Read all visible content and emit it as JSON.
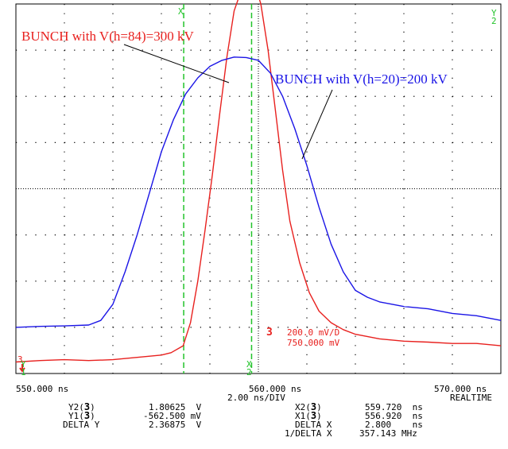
{
  "colors": {
    "red_trace": "#e8201e",
    "blue_trace": "#1a14e6",
    "cursor": "#22c32a",
    "grid": "#000000"
  },
  "chart_data": {
    "type": "line",
    "xlim": [
      550,
      570
    ],
    "ylim": [
      -4,
      4
    ],
    "x_unit": "ns",
    "grid": true,
    "xticks": [
      "550.000 ns",
      "560.000 ns",
      "570.000 ns"
    ],
    "timebase": "2.00 ns/DIV",
    "mode": "REALTIME",
    "series": [
      {
        "name": "BUNCH with V(h=84)=300 kV",
        "color": "#e8201e",
        "x": [
          550.0,
          551.0,
          552.0,
          553.0,
          554.0,
          555.0,
          556.0,
          556.4,
          556.9,
          557.2,
          557.5,
          557.8,
          558.1,
          558.4,
          558.7,
          559.0,
          559.3,
          559.6,
          559.9,
          560.1,
          560.4,
          560.7,
          561.0,
          561.3,
          561.7,
          562.1,
          562.5,
          563.0,
          563.5,
          564.0,
          565.0,
          566.0,
          567.0,
          568.0,
          569.0,
          570.0
        ],
        "y": [
          -3.75,
          -3.72,
          -3.7,
          -3.72,
          -3.7,
          -3.65,
          -3.6,
          -3.55,
          -3.4,
          -2.9,
          -2.0,
          -0.9,
          0.3,
          1.6,
          2.85,
          3.85,
          4.3,
          4.35,
          4.35,
          4.0,
          3.0,
          1.7,
          0.4,
          -0.7,
          -1.6,
          -2.25,
          -2.65,
          -2.9,
          -3.05,
          -3.15,
          -3.25,
          -3.3,
          -3.32,
          -3.35,
          -3.35,
          -3.4
        ]
      },
      {
        "name": "BUNCH with V(h=20)=200 kV",
        "color": "#1a14e6",
        "x": [
          550.0,
          551.0,
          552.0,
          553.0,
          553.5,
          554.0,
          554.5,
          555.0,
          555.5,
          556.0,
          556.5,
          557.0,
          557.5,
          558.0,
          558.5,
          559.0,
          559.5,
          560.0,
          560.5,
          561.0,
          561.5,
          562.0,
          562.5,
          563.0,
          563.5,
          564.0,
          564.5,
          565.0,
          566.0,
          567.0,
          568.0,
          569.0,
          570.0
        ],
        "y": [
          -3.0,
          -2.98,
          -2.97,
          -2.95,
          -2.85,
          -2.5,
          -1.8,
          -1.0,
          -0.1,
          0.8,
          1.5,
          2.05,
          2.4,
          2.65,
          2.78,
          2.85,
          2.84,
          2.78,
          2.5,
          2.0,
          1.3,
          0.5,
          -0.4,
          -1.2,
          -1.8,
          -2.2,
          -2.35,
          -2.45,
          -2.55,
          -2.6,
          -2.7,
          -2.75,
          -2.85
        ]
      }
    ],
    "cursors": {
      "x1": 556.92,
      "x2": 559.72,
      "x1_label": "X",
      "x2_label": "X",
      "x1_sub": "1",
      "x2_sub": "2",
      "y2_label": "Y",
      "y2_sub": "2",
      "y1_label": "Y",
      "y1_sub": "1"
    },
    "channel": {
      "number": "3",
      "scale": "200.0 mV/D",
      "offset": "750.000 mV",
      "marker": "3"
    },
    "annotations": {
      "red": "BUNCH with V(h=84)=300 kV",
      "blue": "BUNCH with V(h=20)=200 kV"
    }
  },
  "readouts": {
    "y2_label": "Y2(",
    "y2_ch": "3",
    "y2_close": ")",
    "y2_value": "1.80625  V",
    "y1_label": "Y1(",
    "y1_ch": "3",
    "y1_close": ")",
    "y1_value": "-562.500 mV",
    "delta_y_label": "DELTA Y",
    "delta_y_value": "2.36875  V",
    "x2_label": "X2(",
    "x2_ch": "3",
    "x2_close": ")",
    "x2_value": "559.720  ns",
    "x1_label": "X1(",
    "x1_ch": "3",
    "x1_close": ")",
    "x1_value": "556.920  ns",
    "delta_x_label": "DELTA X",
    "delta_x_value": "2.800    ns",
    "inv_delta_x_label": "1/DELTA X",
    "inv_delta_x_value": "357.143 MHz"
  }
}
